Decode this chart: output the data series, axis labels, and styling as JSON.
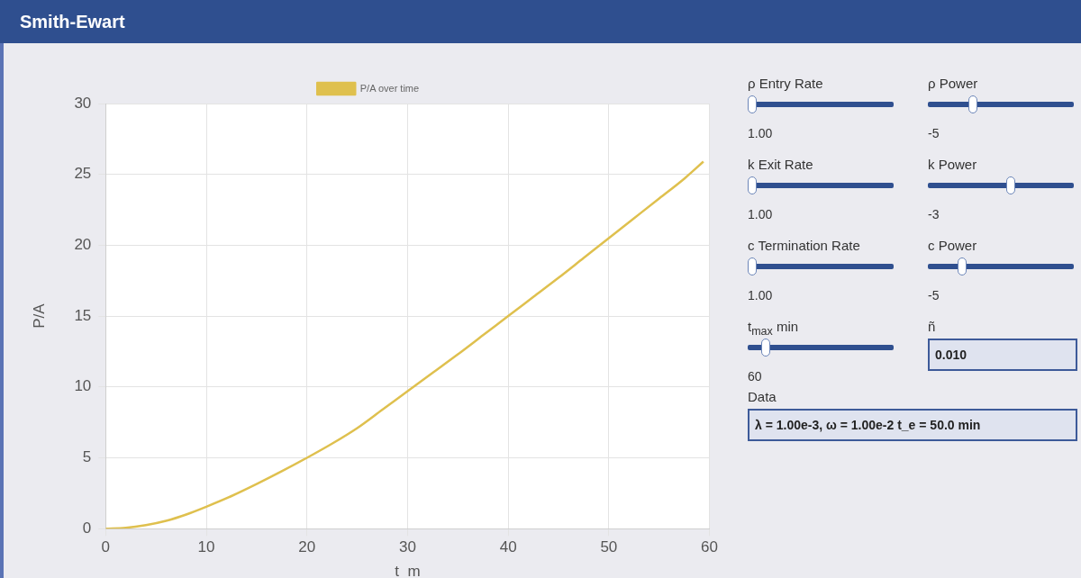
{
  "chart_data": [
    {
      "type": "line",
      "title": "Smith-Ewart",
      "xlabel": "t  m",
      "ylabel": "P/A",
      "legend": "top",
      "grid": true,
      "line_style": "solid",
      "marker": "none",
      "xlim": [
        0,
        60
      ],
      "xticks": [
        0,
        10,
        20,
        30,
        40,
        50,
        60
      ],
      "ylim": [
        0,
        30
      ],
      "yticks": [
        0,
        5,
        10,
        15,
        20,
        25,
        30
      ],
      "series": [
        {
          "name": "P/A over time",
          "color": "#dfc04e",
          "x": [
            0,
            2,
            4,
            6,
            8,
            10,
            12.5,
            15,
            17.5,
            20,
            22.5,
            25,
            27.5,
            30,
            32.5,
            35,
            37.5,
            40,
            42.5,
            45,
            47.5,
            50,
            52.5,
            55,
            57.5,
            59.4
          ],
          "values": [
            0,
            0.06,
            0.25,
            0.55,
            1.0,
            1.55,
            2.3,
            3.15,
            4.05,
            5.0,
            6.0,
            7.1,
            8.4,
            9.7,
            11.0,
            12.3,
            13.65,
            15.0,
            16.35,
            17.7,
            19.1,
            20.5,
            21.9,
            23.3,
            24.7,
            25.9
          ]
        }
      ]
    },
    {
      "type": "other",
      "annotations": [
        "ρ Entry Rate",
        "1.00",
        "ρ Power",
        "-5",
        "k Exit Rate",
        "1.00",
        "k Power",
        "-3",
        "c Termination Rate",
        "1.00",
        "c Power",
        "-5",
        "t$_{max}$ min",
        "60",
        "ñ",
        "0.010",
        "Data",
        "λ = 1.00e-3, ω = 1.00e-2 t_e = 50.0 min"
      ]
    }
  ]
}
